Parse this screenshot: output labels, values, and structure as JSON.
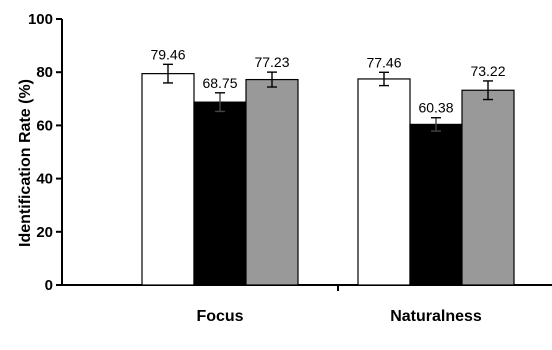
{
  "chart_data": {
    "type": "bar",
    "title": "",
    "xlabel": "",
    "ylabel": "Identification Rate (%)",
    "ylim": [
      0,
      100
    ],
    "yticks": [
      0,
      20,
      40,
      60,
      80,
      100
    ],
    "grid": false,
    "legend": "none",
    "categories": [
      "Focus",
      "Naturalness"
    ],
    "series": [
      {
        "values": [
          79.46,
          77.46
        ],
        "labels": [
          "79.46",
          "77.46"
        ],
        "errors": [
          3.5,
          2.5
        ],
        "fill": "#ffffff"
      },
      {
        "values": [
          68.75,
          60.38
        ],
        "labels": [
          "68.75",
          "60.38"
        ],
        "errors": [
          3.5,
          2.5
        ],
        "fill": "#000000"
      },
      {
        "values": [
          77.23,
          73.22
        ],
        "labels": [
          "77.23",
          "73.22"
        ],
        "errors": [
          2.8,
          3.5
        ],
        "fill": "#999999"
      }
    ]
  }
}
